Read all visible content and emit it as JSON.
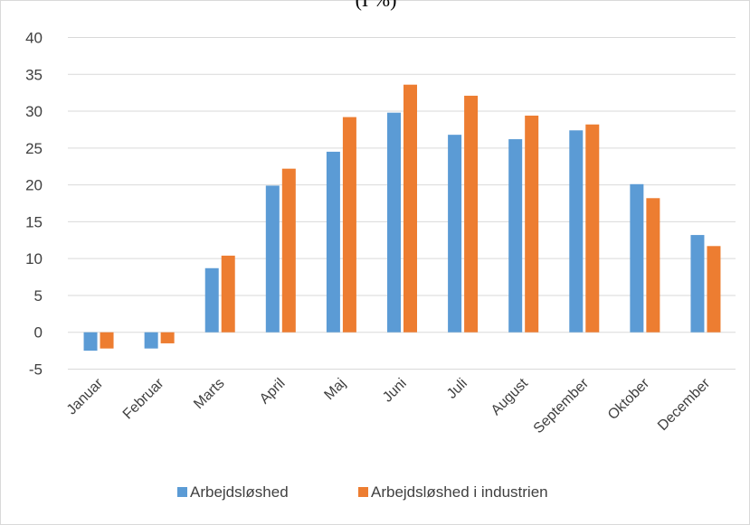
{
  "chart_data": {
    "type": "bar",
    "title": "(I %)",
    "xlabel": "",
    "ylabel": "",
    "ylim": [
      -5,
      40
    ],
    "yticks": [
      -5,
      0,
      5,
      10,
      15,
      20,
      25,
      30,
      35,
      40
    ],
    "grid": true,
    "legend_position": "bottom",
    "categories": [
      "Januar",
      "Februar",
      "Marts",
      "April",
      "Maj",
      "Juni",
      "Juli",
      "August",
      "September",
      "Oktober",
      "December"
    ],
    "series": [
      {
        "name": "Arbejdsløshed",
        "color": "#5b9bd5",
        "values": [
          -2.5,
          -2.2,
          8.7,
          19.9,
          24.5,
          29.8,
          26.8,
          26.2,
          27.4,
          20.1,
          13.2
        ]
      },
      {
        "name": "Arbejdsløshed i industrien",
        "color": "#ed7d31",
        "values": [
          -2.2,
          -1.5,
          10.4,
          22.2,
          29.2,
          33.6,
          32.1,
          29.4,
          28.2,
          18.2,
          11.7
        ]
      }
    ]
  }
}
